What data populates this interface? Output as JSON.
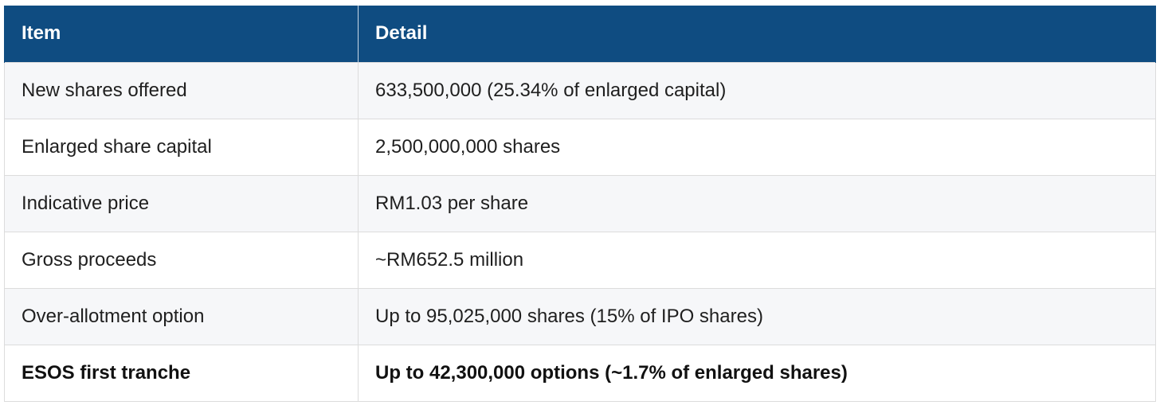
{
  "table": {
    "headers": [
      "Item",
      "Detail"
    ],
    "rows": [
      {
        "item": "New shares offered",
        "detail": "633,500,000 (25.34% of enlarged capital)"
      },
      {
        "item": "Enlarged share capital",
        "detail": "2,500,000,000 shares"
      },
      {
        "item": "Indicative price",
        "detail": "RM1.03 per share"
      },
      {
        "item": "Gross proceeds",
        "detail": "~RM652.5 million"
      },
      {
        "item": "Over-allotment option",
        "detail": "Up to 95,025,000 shares (15% of IPO shares)"
      },
      {
        "item": "ESOS first tranche",
        "detail": "Up to 42,300,000 options (~1.7% of enlarged shares)"
      }
    ]
  },
  "colors": {
    "header_bg": "#0f4c81",
    "header_text": "#ffffff",
    "row_alt_bg": "#f6f7f9",
    "border": "#dcdcdc"
  }
}
